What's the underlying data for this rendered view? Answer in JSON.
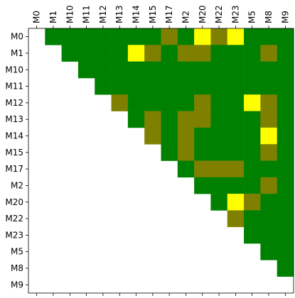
{
  "chart_data": {
    "type": "heatmap",
    "labels": [
      "M0",
      "M1",
      "M10",
      "M11",
      "M12",
      "M13",
      "M14",
      "M15",
      "M17",
      "M2",
      "M20",
      "M22",
      "M23",
      "M5",
      "M8",
      "M9"
    ],
    "colors": [
      "#008000",
      "#808000",
      "#ffff00"
    ],
    "z": [
      [
        null,
        0,
        0,
        0,
        0,
        0,
        0,
        0,
        1,
        0,
        2,
        1,
        2,
        0,
        0,
        0
      ],
      [
        null,
        null,
        0,
        0,
        0,
        0,
        2,
        1,
        0,
        1,
        1,
        0,
        0,
        0,
        1,
        0
      ],
      [
        null,
        null,
        null,
        0,
        0,
        0,
        0,
        0,
        0,
        0,
        0,
        0,
        0,
        0,
        0,
        0
      ],
      [
        null,
        null,
        null,
        null,
        0,
        0,
        0,
        0,
        0,
        0,
        0,
        0,
        0,
        0,
        0,
        0
      ],
      [
        null,
        null,
        null,
        null,
        null,
        1,
        0,
        0,
        0,
        0,
        1,
        0,
        0,
        2,
        1,
        0
      ],
      [
        null,
        null,
        null,
        null,
        null,
        null,
        0,
        1,
        0,
        1,
        1,
        0,
        0,
        0,
        1,
        0
      ],
      [
        null,
        null,
        null,
        null,
        null,
        null,
        null,
        1,
        0,
        1,
        0,
        0,
        0,
        0,
        2,
        0
      ],
      [
        null,
        null,
        null,
        null,
        null,
        null,
        null,
        null,
        0,
        1,
        0,
        0,
        0,
        0,
        1,
        0
      ],
      [
        null,
        null,
        null,
        null,
        null,
        null,
        null,
        null,
        null,
        0,
        1,
        1,
        1,
        0,
        0,
        0
      ],
      [
        null,
        null,
        null,
        null,
        null,
        null,
        null,
        null,
        null,
        null,
        0,
        0,
        0,
        0,
        1,
        0
      ],
      [
        null,
        null,
        null,
        null,
        null,
        null,
        null,
        null,
        null,
        null,
        null,
        0,
        2,
        1,
        0,
        0
      ],
      [
        null,
        null,
        null,
        null,
        null,
        null,
        null,
        null,
        null,
        null,
        null,
        null,
        1,
        0,
        0,
        0
      ],
      [
        null,
        null,
        null,
        null,
        null,
        null,
        null,
        null,
        null,
        null,
        null,
        null,
        null,
        0,
        0,
        0
      ],
      [
        null,
        null,
        null,
        null,
        null,
        null,
        null,
        null,
        null,
        null,
        null,
        null,
        null,
        null,
        0,
        0
      ],
      [
        null,
        null,
        null,
        null,
        null,
        null,
        null,
        null,
        null,
        null,
        null,
        null,
        null,
        null,
        null,
        0
      ],
      [
        null,
        null,
        null,
        null,
        null,
        null,
        null,
        null,
        null,
        null,
        null,
        null,
        null,
        null,
        null,
        null
      ]
    ]
  }
}
